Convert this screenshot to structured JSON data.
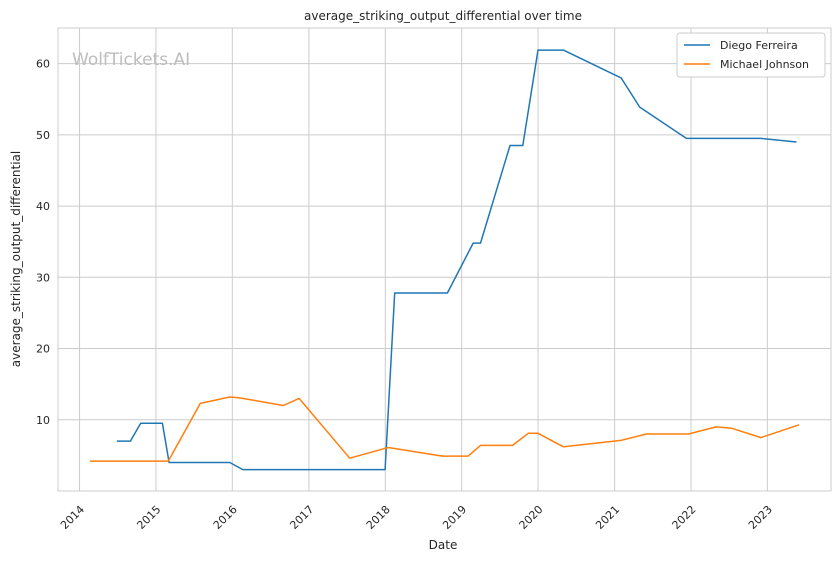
{
  "chart_data": {
    "type": "line",
    "title": "average_striking_output_differential over time",
    "xlabel": "Date",
    "ylabel": "average_striking_output_differential",
    "watermark": "WolfTickets.AI",
    "x_range": [
      "2013-09-20",
      "2023-11-01"
    ],
    "y_range": [
      0,
      65
    ],
    "x_ticks": [
      "2014",
      "2015",
      "2016",
      "2017",
      "2018",
      "2019",
      "2020",
      "2021",
      "2022",
      "2023"
    ],
    "y_ticks": [
      10,
      20,
      30,
      40,
      50,
      60
    ],
    "grid": true,
    "legend_position": "top-right",
    "series": [
      {
        "name": "Diego Ferreira",
        "color": "#1f77b4",
        "points": [
          [
            "2014-06-28",
            7.0
          ],
          [
            "2014-09-01",
            7.0
          ],
          [
            "2014-10-20",
            9.5
          ],
          [
            "2015-02-01",
            9.5
          ],
          [
            "2015-03-05",
            4.0
          ],
          [
            "2015-12-20",
            4.0
          ],
          [
            "2016-02-20",
            3.0
          ],
          [
            "2017-12-31",
            3.0
          ],
          [
            "2018-02-15",
            27.8
          ],
          [
            "2018-10-25",
            27.8
          ],
          [
            "2019-02-25",
            34.8
          ],
          [
            "2019-04-01",
            34.8
          ],
          [
            "2019-08-20",
            48.5
          ],
          [
            "2019-10-20",
            48.5
          ],
          [
            "2020-01-01",
            61.9
          ],
          [
            "2020-05-01",
            61.9
          ],
          [
            "2021-02-01",
            58.0
          ],
          [
            "2021-05-01",
            53.9
          ],
          [
            "2021-12-10",
            49.5
          ],
          [
            "2022-12-01",
            49.5
          ],
          [
            "2023-05-20",
            49.0
          ]
        ]
      },
      {
        "name": "Michael Johnson",
        "color": "#ff7f0e",
        "points": [
          [
            "2014-02-20",
            4.2
          ],
          [
            "2015-02-01",
            4.2
          ],
          [
            "2015-03-01",
            4.2
          ],
          [
            "2015-08-01",
            12.3
          ],
          [
            "2015-12-20",
            13.2
          ],
          [
            "2016-02-01",
            13.1
          ],
          [
            "2016-09-01",
            12.0
          ],
          [
            "2016-11-15",
            13.0
          ],
          [
            "2017-07-15",
            4.6
          ],
          [
            "2018-01-15",
            6.1
          ],
          [
            "2018-10-01",
            4.9
          ],
          [
            "2019-02-01",
            4.9
          ],
          [
            "2019-04-01",
            6.4
          ],
          [
            "2019-09-01",
            6.4
          ],
          [
            "2019-11-15",
            8.1
          ],
          [
            "2020-01-01",
            8.1
          ],
          [
            "2020-05-01",
            6.2
          ],
          [
            "2021-02-01",
            7.1
          ],
          [
            "2021-06-01",
            8.0
          ],
          [
            "2021-12-20",
            8.0
          ],
          [
            "2022-05-01",
            9.0
          ],
          [
            "2022-07-15",
            8.8
          ],
          [
            "2022-12-01",
            7.5
          ],
          [
            "2023-06-01",
            9.3
          ]
        ]
      }
    ]
  }
}
